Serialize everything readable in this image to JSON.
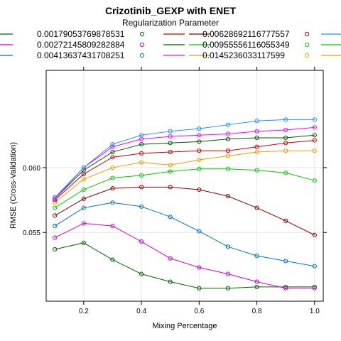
{
  "chart_data": {
    "type": "line",
    "title": "Crizotinib_GEXP with ENET",
    "xlabel": "Mixing Percentage",
    "ylabel": "RMSE (Cross-Validation)",
    "legend_title": "Regularization Parameter",
    "legend_position": "top",
    "grid": true,
    "xlim": [
      0.07,
      1.03
    ],
    "ylim": [
      0.0497,
      0.0675
    ],
    "x_ticks": [
      "0.2",
      "0.4",
      "0.6",
      "0.8",
      "1.0"
    ],
    "y_ticks": [
      "0.055",
      "0.060"
    ],
    "x": [
      0.1,
      0.2,
      0.3,
      0.4,
      0.5,
      0.6,
      0.7,
      0.8,
      0.9,
      1.0
    ],
    "series": [
      {
        "name": "0.00179053769878531",
        "color": "#000000",
        "line_color": "#006400",
        "values": [
          0.0537,
          0.0542,
          0.0529,
          0.0518,
          0.0512,
          0.0507,
          0.0507,
          0.0508,
          0.0508,
          0.0508
        ]
      },
      {
        "name": "0.00272145809282884",
        "color": "#cc00cc",
        "line_color": "#cc00cc",
        "values": [
          0.0546,
          0.0557,
          0.0555,
          0.0543,
          0.053,
          0.0523,
          0.0518,
          0.0512,
          0.0507,
          0.0507
        ]
      },
      {
        "name": "0.00413637431708251",
        "color": "#0072c6",
        "line_color": "#0072c6",
        "values": [
          0.0555,
          0.0569,
          0.0573,
          0.057,
          0.0562,
          0.0551,
          0.0539,
          0.0532,
          0.0528,
          0.0524
        ]
      },
      {
        "name": "0.00628692116777557",
        "color": "#8b0000",
        "line_color": "#8b0000",
        "values": [
          0.0563,
          0.0576,
          0.0584,
          0.0585,
          0.0585,
          0.0583,
          0.0578,
          0.0569,
          0.0559,
          0.0548
        ]
      },
      {
        "name": "0.00955556116055349",
        "color": "#00cc00",
        "line_color": "#00cc00",
        "values": [
          0.0569,
          0.0583,
          0.0592,
          0.0594,
          0.0597,
          0.0599,
          0.0599,
          0.0598,
          0.0596,
          0.059
        ]
      },
      {
        "name": "0.0145236033117599",
        "color": "#e69f00",
        "line_color": "#e69f00",
        "values": [
          0.0573,
          0.0591,
          0.06,
          0.0604,
          0.0602,
          0.0606,
          0.0609,
          0.0612,
          0.0613,
          0.0613
        ]
      },
      {
        "name": "",
        "color": "#cc0000",
        "line_color": "#cc0000",
        "values": [
          0.0575,
          0.0595,
          0.0608,
          0.0611,
          0.0612,
          0.0613,
          0.0613,
          0.0616,
          0.0619,
          0.0621
        ]
      },
      {
        "name": "",
        "color": "#005a00",
        "line_color": "#005a00",
        "values": [
          0.0576,
          0.0598,
          0.0612,
          0.0618,
          0.0619,
          0.062,
          0.0622,
          0.0623,
          0.0623,
          0.0625
        ]
      },
      {
        "name": "",
        "color": "#ff00ff",
        "line_color": "#ff00ff",
        "values": [
          0.0576,
          0.06,
          0.0616,
          0.0622,
          0.0624,
          0.0625,
          0.0626,
          0.0628,
          0.0629,
          0.0631
        ]
      },
      {
        "name": "",
        "color": "#1e90ff",
        "line_color": "#1e90ff",
        "values": [
          0.0577,
          0.06,
          0.0618,
          0.0625,
          0.0628,
          0.063,
          0.0633,
          0.0636,
          0.0637,
          0.0637
        ]
      }
    ]
  }
}
